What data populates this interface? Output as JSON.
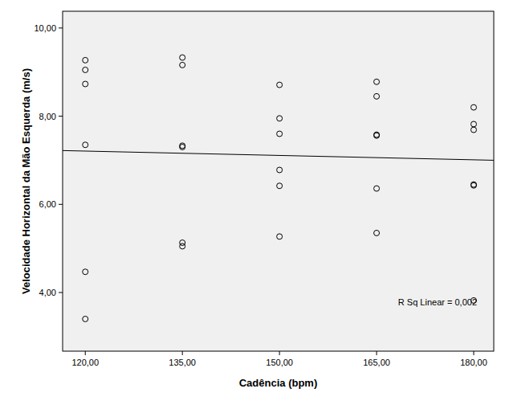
{
  "chart_data": {
    "type": "scatter",
    "x_label": "Cadência (bpm)",
    "y_label": "Velocidade Horizontal da Mão Esquerda (m/s)",
    "annotation": "R Sq Linear = 0,002",
    "xlim": [
      116.5,
      183.1
    ],
    "ylim": [
      2.67,
      10.38
    ],
    "xticks": [
      {
        "value": 120,
        "label": "120,00"
      },
      {
        "value": 135,
        "label": "135,00"
      },
      {
        "value": 150,
        "label": "150,00"
      },
      {
        "value": 165,
        "label": "165,00"
      },
      {
        "value": 180,
        "label": "180,00"
      }
    ],
    "yticks": [
      {
        "value": 4,
        "label": "4,00"
      },
      {
        "value": 6,
        "label": "6,00"
      },
      {
        "value": 8,
        "label": "8,00"
      },
      {
        "value": 10,
        "label": "10,00"
      }
    ],
    "grid": false,
    "series": [
      {
        "type": "scatter",
        "color": "#000000",
        "marker": "circle-open",
        "x": [
          120,
          120,
          120,
          120,
          120,
          120,
          135,
          135,
          135,
          135,
          135,
          135,
          150,
          150,
          150,
          150,
          150,
          150,
          165,
          165,
          165,
          165,
          165,
          165,
          180,
          180,
          180,
          180,
          180,
          180
        ],
        "values": [
          9.27,
          9.05,
          8.73,
          7.35,
          4.47,
          3.4,
          9.33,
          9.16,
          7.33,
          7.3,
          5.13,
          5.05,
          8.71,
          7.95,
          7.6,
          6.78,
          6.42,
          5.27,
          8.78,
          8.45,
          7.58,
          7.56,
          6.36,
          5.35,
          8.2,
          7.82,
          7.69,
          6.45,
          6.43,
          3.82
        ]
      },
      {
        "type": "line",
        "color": "#000000",
        "line_style": "solid",
        "x": [
          116.5,
          183.1
        ],
        "values": [
          7.22,
          7.0
        ]
      }
    ]
  }
}
